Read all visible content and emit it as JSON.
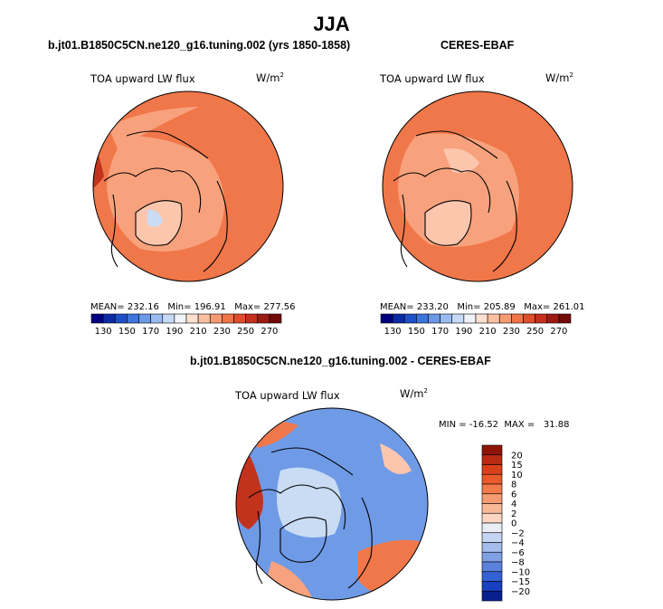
{
  "figure": {
    "season": "JJA",
    "left_title": "b.jt01.B1850C5CN.ne120_g16.tuning.002 (yrs 1850-1858)",
    "right_title": "CERES-EBAF",
    "diff_title": "b.jt01.B1850C5CN.ne120_g16.tuning.002 - CERES-EBAF"
  },
  "colors": {
    "ocean_warm": "#f0774a",
    "mid_warm": "#f7a27d",
    "light_warm": "#fcc6ad",
    "hot_red": "#c2331d",
    "ice_blue": "#c9dcf4",
    "diff_bg": "#6f9ae6",
    "coast": "#000000"
  },
  "chart_data": [
    {
      "type": "heatmap",
      "panel": "model",
      "variable_label": "TOA upward LW flux",
      "units_base": "W/m",
      "units_exp": "2",
      "stats": {
        "mean": "232.16",
        "min": "196.91",
        "max": "277.56",
        "mean_label": "MEAN=",
        "min_label": "Min=",
        "max_label": "Max="
      },
      "colorbar": {
        "orientation": "horizontal",
        "tick_labels": [
          "130",
          "150",
          "170",
          "190",
          "210",
          "230",
          "250",
          "270"
        ],
        "colors": [
          "#000080",
          "#0b2ba5",
          "#1f4fc8",
          "#3d74de",
          "#6b98e8",
          "#99bbf0",
          "#c5daf6",
          "#f0f3f8",
          "#fde0d0",
          "#fbbfa1",
          "#f69a72",
          "#ef7447",
          "#e04e2c",
          "#c52f1c",
          "#9d1a13",
          "#720a0a"
        ]
      }
    },
    {
      "type": "heatmap",
      "panel": "obs",
      "variable_label": "TOA upward LW flux",
      "units_base": "W/m",
      "units_exp": "2",
      "stats": {
        "mean": "233.20",
        "min": "205.89",
        "max": "261.01",
        "mean_label": "MEAN=",
        "min_label": "Min=",
        "max_label": "Max="
      },
      "colorbar": {
        "orientation": "horizontal",
        "tick_labels": [
          "130",
          "150",
          "170",
          "190",
          "210",
          "230",
          "250",
          "270"
        ],
        "colors": [
          "#000080",
          "#0b2ba5",
          "#1f4fc8",
          "#3d74de",
          "#6b98e8",
          "#99bbf0",
          "#c5daf6",
          "#f0f3f8",
          "#fde0d0",
          "#fbbfa1",
          "#f69a72",
          "#ef7447",
          "#e04e2c",
          "#c52f1c",
          "#9d1a13",
          "#720a0a"
        ]
      }
    },
    {
      "type": "heatmap",
      "panel": "difference",
      "variable_label": "TOA upward LW flux",
      "units_base": "W/m",
      "units_exp": "2",
      "stats": {
        "min_label": "MIN =",
        "min": "-16.52",
        "max_label": "MAX =",
        "max": "31.88"
      },
      "colorbar": {
        "orientation": "vertical",
        "tick_labels": [
          "20",
          "15",
          "10",
          "8",
          "6",
          "4",
          "2",
          "0",
          "−2",
          "−4",
          "−6",
          "−8",
          "−10",
          "−15",
          "−20"
        ],
        "colors": [
          "#8e1408",
          "#b82a12",
          "#d8401c",
          "#ea5a2c",
          "#f27a4c",
          "#f69a72",
          "#f9b898",
          "#fcd6c2",
          "#e9eef6",
          "#c4d5f1",
          "#a3bdec",
          "#7fa1e4",
          "#5a82dc",
          "#3461d4",
          "#1840c0",
          "#08208e"
        ]
      }
    }
  ]
}
